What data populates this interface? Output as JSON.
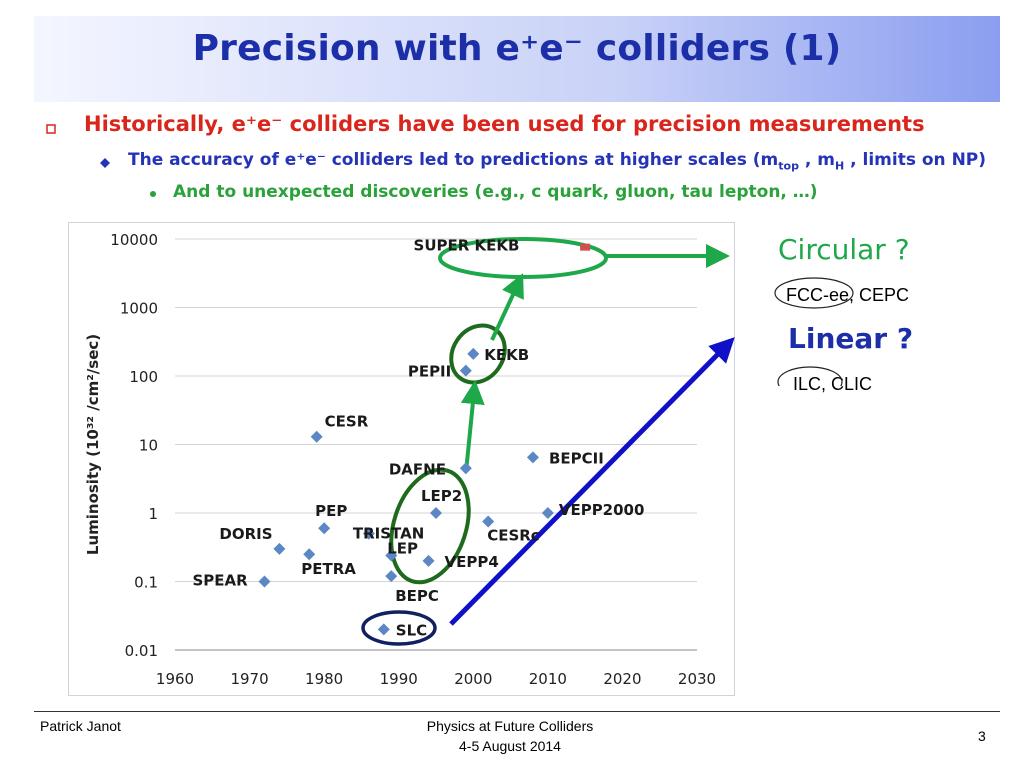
{
  "slide": {
    "title": "Precision with e⁺e⁻ colliders (1)",
    "bullet1": "Historically, e⁺e⁻ colliders have been used for precision measurements",
    "bullet2": "The accuracy of e⁺e⁻ colliders led to predictions at higher scales (m",
    "bullet2_sub1": "top",
    "bullet2_mid": " , m",
    "bullet2_sub2": "H",
    "bullet2_end": " , limits on NP)",
    "bullet3": "And to unexpected discoveries (e.g., c quark, gluon, tau lepton, …)",
    "circular_label": "Circular ?",
    "circular_options": "FCC-ee, CEPC",
    "linear_label": "Linear ?",
    "linear_options": "ILC, CLIC",
    "footer_author": "Patrick Janot",
    "footer_event": "Physics at Future Colliders",
    "footer_date": "4-5 August 2014",
    "page_number": "3",
    "colors": {
      "title": "#1c2fa8",
      "bullet1": "#d9261c",
      "bullet2": "#2533b8",
      "bullet3": "#2aa23a",
      "marker": "#5b87c5",
      "green_arrow": "#1fa84a",
      "blue_arrow": "#1010c8",
      "dark_green_ellipse": "#1e6b1e",
      "navy_ellipse": "#102060"
    }
  },
  "chart_data": {
    "type": "scatter",
    "xlabel": "",
    "ylabel": "Luminosity (10³² /cm²/sec)",
    "xlim": [
      1960,
      2030
    ],
    "ylim": [
      0.01,
      10000
    ],
    "yscale": "log",
    "xticks": [
      "1960",
      "1970",
      "1980",
      "1990",
      "2000",
      "2010",
      "2020",
      "2030"
    ],
    "yticks": [
      "0.01",
      "0.1",
      "1",
      "10",
      "100",
      "1000",
      "10000"
    ],
    "grid": "horizontal",
    "points": [
      {
        "name": "SPEAR",
        "x": 1972,
        "y": 0.1
      },
      {
        "name": "DORIS",
        "x": 1974,
        "y": 0.3
      },
      {
        "name": "PETRA",
        "x": 1978,
        "y": 0.25
      },
      {
        "name": "PEP",
        "x": 1980,
        "y": 0.6
      },
      {
        "name": "CESR",
        "x": 1979,
        "y": 13
      },
      {
        "name": "TRISTAN",
        "x": 1986,
        "y": 0.5
      },
      {
        "name": "SLC",
        "x": 1988,
        "y": 0.02
      },
      {
        "name": "LEP",
        "x": 1989,
        "y": 0.24
      },
      {
        "name": "BEPC",
        "x": 1989,
        "y": 0.12
      },
      {
        "name": "VEPP4",
        "x": 1994,
        "y": 0.2
      },
      {
        "name": "LEP2",
        "x": 1995,
        "y": 1.0
      },
      {
        "name": "DAFNE",
        "x": 1999,
        "y": 4.5
      },
      {
        "name": "PEPII",
        "x": 1999,
        "y": 120
      },
      {
        "name": "KEKB",
        "x": 2000,
        "y": 210
      },
      {
        "name": "CESRc",
        "x": 2002,
        "y": 0.75
      },
      {
        "name": "BEPCII",
        "x": 2008,
        "y": 6.5
      },
      {
        "name": "VEPP2000",
        "x": 2010,
        "y": 1.0
      }
    ],
    "labels": [
      {
        "text": "SPEAR"
      },
      {
        "text": "DORIS"
      },
      {
        "text": "PETRA"
      },
      {
        "text": "PEP"
      },
      {
        "text": "CESR"
      },
      {
        "text": "TRISTAN"
      },
      {
        "text": "SLC"
      },
      {
        "text": "LEP"
      },
      {
        "text": "BEPC"
      },
      {
        "text": "VEPP4"
      },
      {
        "text": "LEP2"
      },
      {
        "text": "DAFNE"
      },
      {
        "text": "PEPII"
      },
      {
        "text": "KEKB"
      },
      {
        "text": "CESRc"
      },
      {
        "text": "BEPCII"
      },
      {
        "text": "VEPP2000"
      },
      {
        "text": "SUPER KEKB"
      }
    ]
  }
}
